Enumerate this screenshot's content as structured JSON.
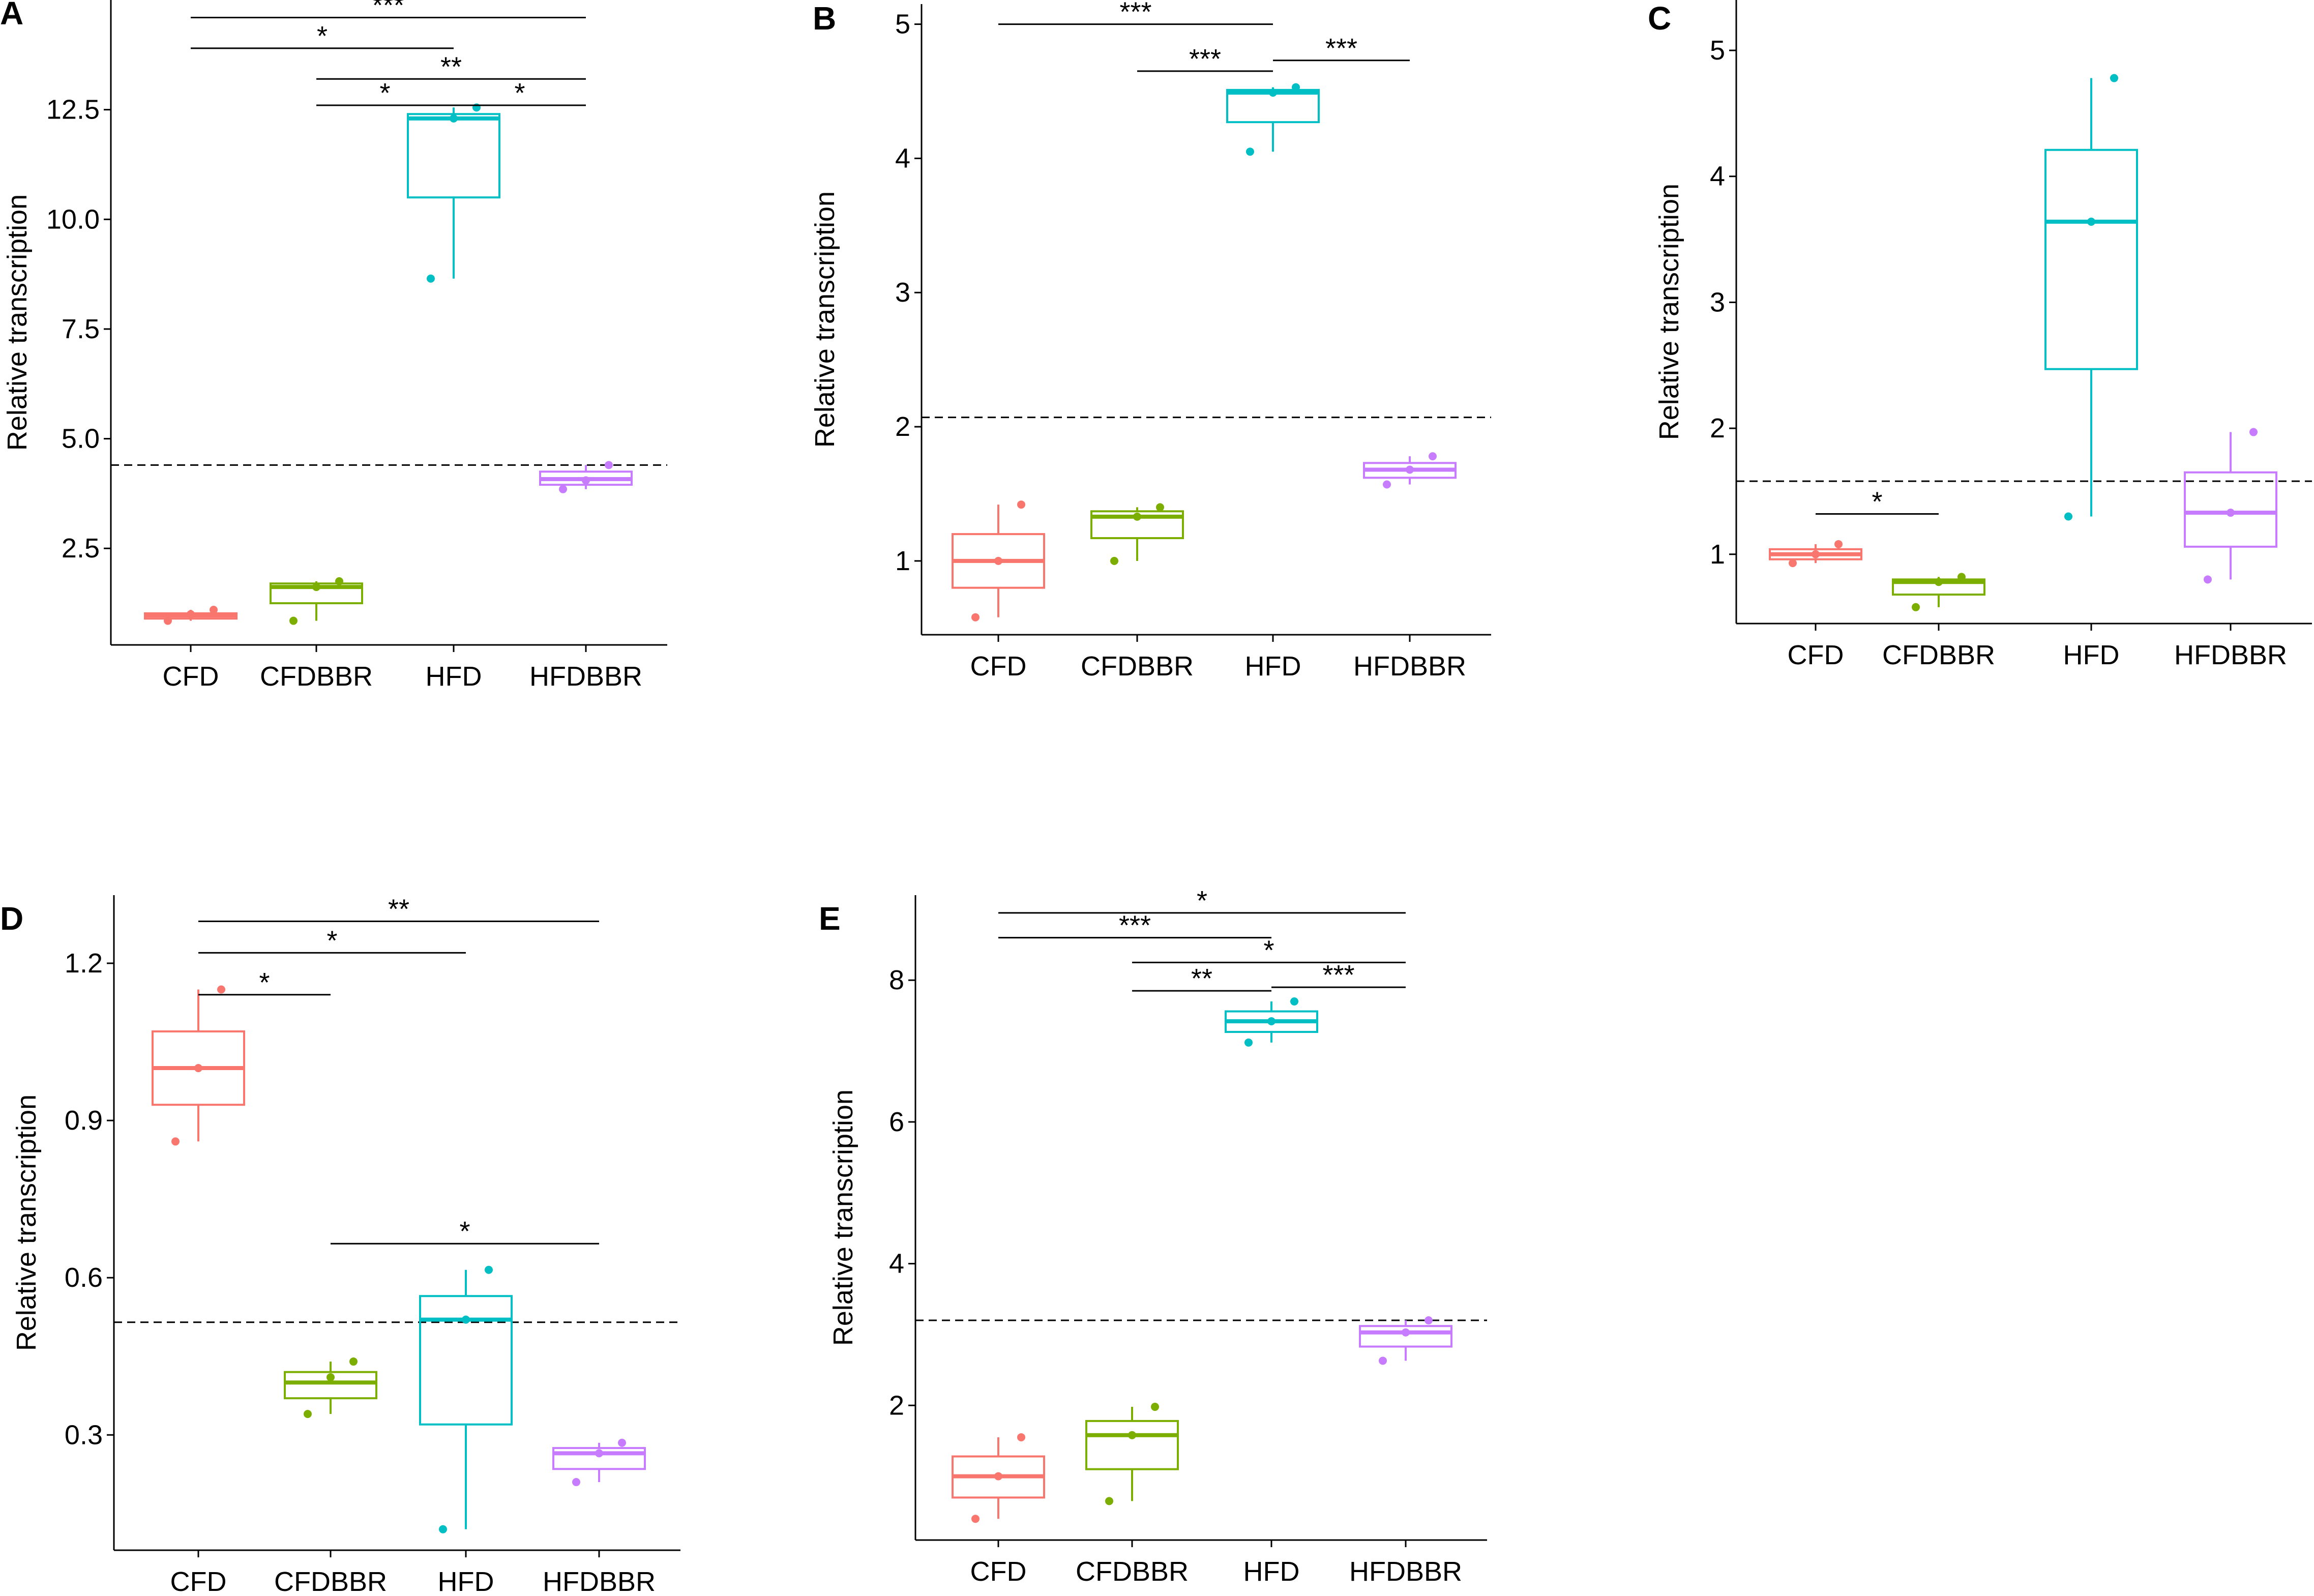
{
  "chart_data": [
    {
      "panel": "A",
      "type": "box",
      "ylabel": "Relative transcription",
      "categories": [
        "CFD",
        "CFDBBR",
        "HFD",
        "HFDBBR"
      ],
      "colors": [
        "#F8766D",
        "#7CAE00",
        "#00BFC4",
        "#C77CFF"
      ],
      "yticks": [
        2.5,
        5.0,
        7.5,
        10.0,
        12.5
      ],
      "ytick_labels": [
        "2.5",
        "5.0",
        "7.5",
        "10.0",
        "12.5"
      ],
      "ylim": [
        0.3,
        15.0
      ],
      "reference_line": 4.4,
      "boxes": [
        {
          "group": "CFD",
          "min": 0.85,
          "q1": 0.9,
          "median": 0.97,
          "q3": 1.02,
          "max": 1.1,
          "points": [
            0.85,
            1.0,
            1.1
          ]
        },
        {
          "group": "CFDBBR",
          "min": 0.85,
          "q1": 1.25,
          "median": 1.62,
          "q3": 1.7,
          "max": 1.75,
          "points": [
            0.85,
            1.62,
            1.75
          ]
        },
        {
          "group": "HFD",
          "min": 8.65,
          "q1": 10.5,
          "median": 12.3,
          "q3": 12.4,
          "max": 12.55,
          "points": [
            8.65,
            12.3,
            12.55
          ]
        },
        {
          "group": "HFDBBR",
          "min": 3.85,
          "q1": 3.95,
          "median": 4.08,
          "q3": 4.25,
          "max": 4.4,
          "points": [
            3.85,
            4.05,
            4.4
          ]
        }
      ],
      "significance": [
        {
          "from": "CFD",
          "to": "HFDBBR",
          "y": 14.6,
          "label": "***"
        },
        {
          "from": "CFD",
          "to": "HFD",
          "y": 13.9,
          "label": "*"
        },
        {
          "from": "CFDBBR",
          "to": "HFDBBR",
          "y": 13.2,
          "label": "**"
        },
        {
          "from": "CFDBBR",
          "to": "HFD",
          "y": 12.6,
          "label": "*"
        },
        {
          "from": "HFD",
          "to": "HFDBBR",
          "y": 12.6,
          "label": "*"
        }
      ]
    },
    {
      "panel": "B",
      "type": "box",
      "ylabel": "Relative transcription",
      "categories": [
        "CFD",
        "CFDBBR",
        "HFD",
        "HFDBBR"
      ],
      "colors": [
        "#F8766D",
        "#7CAE00",
        "#00BFC4",
        "#C77CFF"
      ],
      "yticks": [
        1,
        2,
        3,
        4,
        5
      ],
      "ytick_labels": [
        "1",
        "2",
        "3",
        "4",
        "5"
      ],
      "ylim": [
        0.45,
        5.15
      ],
      "reference_line": 2.07,
      "boxes": [
        {
          "group": "CFD",
          "min": 0.58,
          "q1": 0.8,
          "median": 1.0,
          "q3": 1.2,
          "max": 1.42,
          "points": [
            0.58,
            1.0,
            1.42
          ]
        },
        {
          "group": "CFDBBR",
          "min": 1.0,
          "q1": 1.17,
          "median": 1.33,
          "q3": 1.37,
          "max": 1.4,
          "points": [
            1.0,
            1.33,
            1.4
          ]
        },
        {
          "group": "HFD",
          "min": 4.05,
          "q1": 4.27,
          "median": 4.49,
          "q3": 4.51,
          "max": 4.53,
          "points": [
            4.05,
            4.49,
            4.53
          ]
        },
        {
          "group": "HFDBBR",
          "min": 1.57,
          "q1": 1.62,
          "median": 1.68,
          "q3": 1.73,
          "max": 1.78,
          "points": [
            1.57,
            1.68,
            1.78
          ]
        }
      ],
      "significance": [
        {
          "from": "CFD",
          "to": "HFD",
          "y": 5.0,
          "label": "***"
        },
        {
          "from": "CFDBBR",
          "to": "HFD",
          "y": 4.65,
          "label": "***"
        },
        {
          "from": "HFD",
          "to": "HFDBBR",
          "y": 4.73,
          "label": "***"
        }
      ]
    },
    {
      "panel": "C",
      "type": "box",
      "ylabel": "Relative transcription",
      "categories": [
        "CFD",
        "CFDBBR",
        "HFD",
        "HFDBBR"
      ],
      "colors": [
        "#F8766D",
        "#7CAE00",
        "#00BFC4",
        "#C77CFF"
      ],
      "yticks": [
        1,
        2,
        3,
        4,
        5
      ],
      "ytick_labels": [
        "1",
        "2",
        "3",
        "4",
        "5"
      ],
      "ylim": [
        0.45,
        5.4
      ],
      "reference_line": 1.58,
      "boxes": [
        {
          "group": "CFD",
          "min": 0.93,
          "q1": 0.96,
          "median": 1.0,
          "q3": 1.04,
          "max": 1.08,
          "points": [
            0.93,
            1.0,
            1.08
          ]
        },
        {
          "group": "CFDBBR",
          "min": 0.58,
          "q1": 0.68,
          "median": 0.78,
          "q3": 0.8,
          "max": 0.82,
          "points": [
            0.58,
            0.78,
            0.82
          ]
        },
        {
          "group": "HFD",
          "min": 1.3,
          "q1": 2.47,
          "median": 3.64,
          "q3": 4.21,
          "max": 4.78,
          "points": [
            1.3,
            3.64,
            4.78
          ]
        },
        {
          "group": "HFDBBR",
          "min": 0.8,
          "q1": 1.06,
          "median": 1.33,
          "q3": 1.65,
          "max": 1.97,
          "points": [
            0.8,
            1.33,
            1.97
          ]
        }
      ],
      "significance": [
        {
          "from": "CFD",
          "to": "CFDBBR",
          "y": 1.32,
          "label": "*"
        }
      ]
    },
    {
      "panel": "D",
      "type": "box",
      "ylabel": "Relative transcription",
      "categories": [
        "CFD",
        "CFDBBR",
        "HFD",
        "HFDBBR"
      ],
      "colors": [
        "#F8766D",
        "#7CAE00",
        "#00BFC4",
        "#C77CFF"
      ],
      "yticks": [
        0.3,
        0.6,
        0.9,
        1.2
      ],
      "ytick_labels": [
        "0.3",
        "0.6",
        "0.9",
        "1.2"
      ],
      "ylim": [
        0.08,
        1.33
      ],
      "reference_line": 0.515,
      "boxes": [
        {
          "group": "CFD",
          "min": 0.86,
          "q1": 0.93,
          "median": 1.0,
          "q3": 1.07,
          "max": 1.15,
          "points": [
            0.86,
            1.0,
            1.15
          ]
        },
        {
          "group": "CFDBBR",
          "min": 0.34,
          "q1": 0.37,
          "median": 0.4,
          "q3": 0.42,
          "max": 0.44,
          "points": [
            0.34,
            0.41,
            0.44
          ]
        },
        {
          "group": "HFD",
          "min": 0.12,
          "q1": 0.32,
          "median": 0.52,
          "q3": 0.565,
          "max": 0.615,
          "points": [
            0.12,
            0.52,
            0.615
          ]
        },
        {
          "group": "HFDBBR",
          "min": 0.21,
          "q1": 0.235,
          "median": 0.265,
          "q3": 0.275,
          "max": 0.285,
          "points": [
            0.21,
            0.265,
            0.285
          ]
        }
      ],
      "significance": [
        {
          "from": "CFD",
          "to": "HFDBBR",
          "y": 1.28,
          "label": "**"
        },
        {
          "from": "CFD",
          "to": "HFD",
          "y": 1.22,
          "label": "*"
        },
        {
          "from": "CFD",
          "to": "CFDBBR",
          "y": 1.14,
          "label": "*"
        },
        {
          "from": "CFDBBR",
          "to": "HFDBBR",
          "y": 0.665,
          "label": "*"
        }
      ]
    },
    {
      "panel": "E",
      "type": "box",
      "ylabel": "Relative transcription",
      "categories": [
        "CFD",
        "CFDBBR",
        "HFD",
        "HFDBBR"
      ],
      "colors": [
        "#F8766D",
        "#7CAE00",
        "#00BFC4",
        "#C77CFF"
      ],
      "yticks": [
        2,
        4,
        6,
        8
      ],
      "ytick_labels": [
        "2",
        "4",
        "6",
        "8"
      ],
      "ylim": [
        0.1,
        9.2
      ],
      "reference_line": 3.2,
      "boxes": [
        {
          "group": "CFD",
          "min": 0.4,
          "q1": 0.7,
          "median": 1.0,
          "q3": 1.28,
          "max": 1.55,
          "points": [
            0.4,
            1.0,
            1.55
          ]
        },
        {
          "group": "CFDBBR",
          "min": 0.65,
          "q1": 1.1,
          "median": 1.58,
          "q3": 1.78,
          "max": 1.98,
          "points": [
            0.65,
            1.58,
            1.98
          ]
        },
        {
          "group": "HFD",
          "min": 7.12,
          "q1": 7.27,
          "median": 7.42,
          "q3": 7.56,
          "max": 7.7,
          "points": [
            7.12,
            7.42,
            7.7
          ]
        },
        {
          "group": "HFDBBR",
          "min": 2.63,
          "q1": 2.83,
          "median": 3.03,
          "q3": 3.12,
          "max": 3.2,
          "points": [
            2.63,
            3.03,
            3.2
          ]
        }
      ],
      "significance": [
        {
          "from": "CFD",
          "to": "HFDBBR",
          "y": 8.95,
          "label": "*"
        },
        {
          "from": "CFD",
          "to": "HFD",
          "y": 8.6,
          "label": "***"
        },
        {
          "from": "CFDBBR",
          "to": "HFDBBR",
          "y": 8.25,
          "label": "*"
        },
        {
          "from": "CFDBBR",
          "to": "HFD",
          "y": 7.85,
          "label": "**"
        },
        {
          "from": "HFD",
          "to": "HFDBBR",
          "y": 7.9,
          "label": "***"
        }
      ]
    }
  ]
}
